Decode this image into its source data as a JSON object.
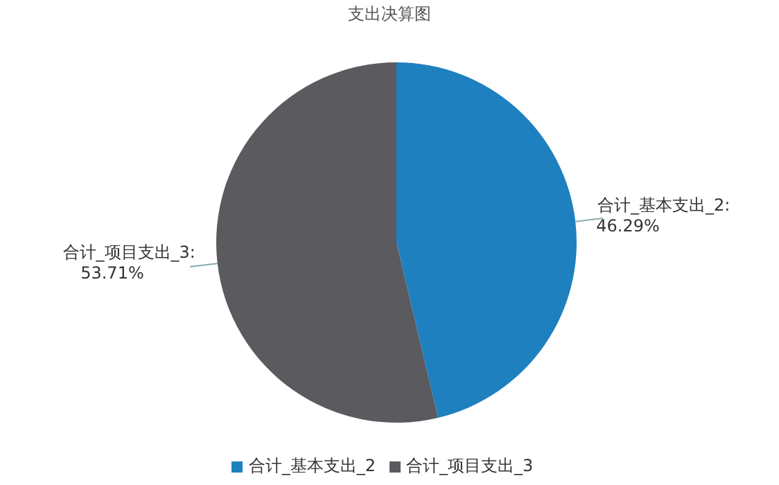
{
  "chart_data": {
    "type": "pie",
    "title": "支出决算图",
    "categories": [
      "合计_基本支出_2",
      "合计_项目支出_3"
    ],
    "values": [
      46.29,
      53.71
    ],
    "colors": [
      "#1f80c0",
      "#5b5a5f"
    ],
    "value_labels": [
      "合计_基本支出_2:\n46.29%",
      "合计_项目支出_3:\n53.71%"
    ],
    "legend": "bottom"
  }
}
